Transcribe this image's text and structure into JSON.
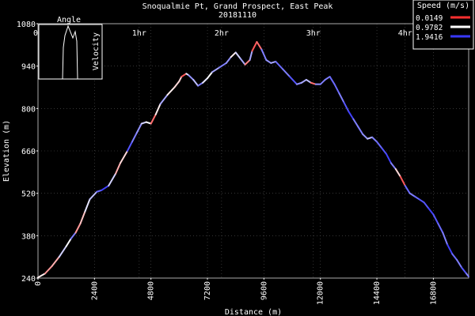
{
  "chart_data": {
    "type": "line",
    "title": "Snoqualmie Pt, Grand Prospect, East Peak",
    "subtitle": "20181110",
    "xlabel": "Distance (m)",
    "ylabel": "Elevation (m)",
    "xlim": [
      0,
      18300
    ],
    "ylim": [
      240,
      1080
    ],
    "x_ticks": [
      0,
      2400,
      4800,
      7200,
      9600,
      12000,
      14400,
      16800
    ],
    "y_ticks": [
      240,
      380,
      520,
      660,
      800,
      940,
      1080
    ],
    "time_ticks": [
      {
        "label": "0h",
        "x": 0
      },
      {
        "label": "1hr",
        "x": 4300
      },
      {
        "label": "2hr",
        "x": 7800
      },
      {
        "label": "3hr",
        "x": 11700
      },
      {
        "label": "4hr",
        "x": 15600
      }
    ],
    "grid": true,
    "legend_placement": "top-right",
    "legend": {
      "title": "Speed (m/s)",
      "items": [
        {
          "label": "0.0149",
          "color": "#ff3030"
        },
        {
          "label": "0.9782",
          "color": "#ffffff"
        },
        {
          "label": "1.9416",
          "color": "#3838ff"
        }
      ]
    },
    "inset": {
      "title": "Angle",
      "ylabel": "Velocity"
    },
    "series": [
      {
        "x": [
          0,
          300,
          600,
          900,
          1200,
          1400,
          1600,
          1800,
          2000,
          2200,
          2500,
          2700,
          3000,
          3300,
          3500,
          3800,
          4000,
          4200,
          4400,
          4600,
          4800,
          5000,
          5200,
          5500,
          5800,
          6000,
          6100,
          6300,
          6400,
          6600,
          6800,
          7000,
          7200,
          7400,
          7700,
          8000,
          8200,
          8400,
          8600,
          8800,
          9000,
          9100,
          9300,
          9500,
          9700,
          9900,
          10100,
          10400,
          10700,
          11000,
          11200,
          11400,
          11600,
          11800,
          12000,
          12200,
          12400,
          12600,
          12800,
          13000,
          13200,
          13400,
          13600,
          13800,
          14000,
          14200,
          14400,
          14600,
          14800,
          15000,
          15200,
          15400,
          15600,
          15800,
          16000,
          16200,
          16400,
          16600,
          16800,
          17000,
          17200,
          17400,
          17600,
          17800,
          18000,
          18200,
          18300
        ],
        "y": [
          242,
          255,
          280,
          310,
          345,
          370,
          390,
          420,
          460,
          500,
          525,
          530,
          545,
          585,
          620,
          660,
          690,
          720,
          750,
          755,
          750,
          780,
          815,
          845,
          870,
          890,
          905,
          915,
          910,
          895,
          875,
          885,
          900,
          920,
          935,
          950,
          970,
          985,
          965,
          945,
          960,
          990,
          1020,
          995,
          960,
          950,
          955,
          930,
          905,
          880,
          885,
          895,
          885,
          880,
          880,
          895,
          905,
          880,
          850,
          820,
          790,
          765,
          740,
          715,
          700,
          705,
          690,
          670,
          650,
          620,
          600,
          575,
          545,
          520,
          510,
          500,
          490,
          470,
          450,
          420,
          390,
          350,
          320,
          300,
          275,
          255,
          245
        ],
        "speed": [
          0.9,
          0.5,
          0.6,
          1.2,
          1.0,
          1.6,
          0.5,
          0.7,
          1.1,
          1.3,
          1.7,
          1.9,
          1.2,
          0.6,
          0.8,
          1.8,
          1.6,
          1.5,
          1.2,
          1.0,
          0.3,
          0.9,
          1.4,
          0.9,
          0.8,
          0.8,
          0.2,
          1.1,
          1.5,
          1.3,
          1.6,
          1.1,
          1.0,
          1.4,
          1.6,
          1.5,
          0.9,
          1.2,
          1.4,
          0.4,
          1.4,
          0.2,
          0.3,
          1.6,
          1.5,
          1.4,
          1.7,
          1.6,
          1.8,
          1.5,
          1.4,
          1.3,
          0.3,
          1.5,
          1.6,
          1.6,
          1.7,
          1.7,
          1.6,
          1.8,
          1.9,
          1.6,
          1.6,
          1.5,
          1.3,
          1.6,
          1.7,
          1.8,
          1.9,
          1.6,
          0.8,
          0.2,
          1.7,
          1.6,
          1.7,
          1.8,
          1.8,
          1.9,
          1.8,
          1.7,
          1.6,
          1.9,
          1.7,
          1.6,
          1.8,
          1.6,
          1.5
        ]
      }
    ]
  }
}
